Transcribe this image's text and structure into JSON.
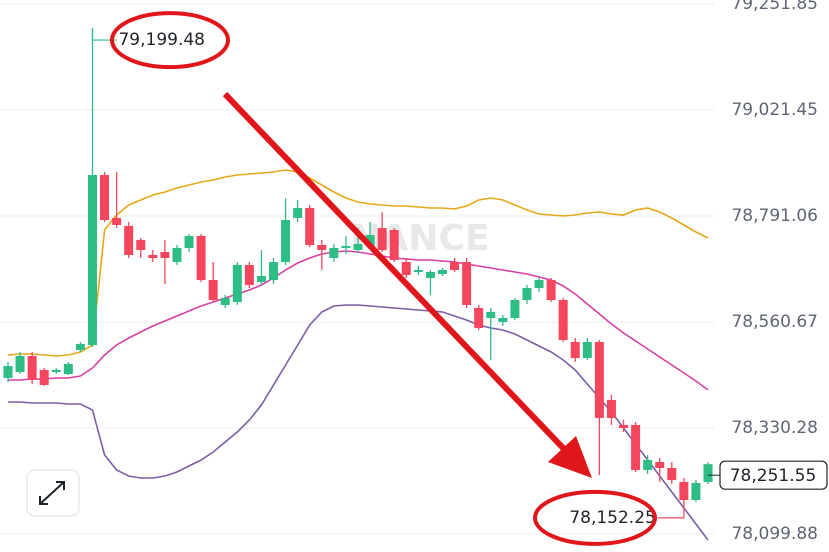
{
  "chart_data": {
    "type": "candlestick",
    "ylim": [
      78060.7,
      79260.5
    ],
    "yticks": [
      {
        "value": 79251.85,
        "label": "79,251.85"
      },
      {
        "value": 79021.45,
        "label": "79,021.45"
      },
      {
        "value": 78791.06,
        "label": "78,791.06"
      },
      {
        "value": 78560.67,
        "label": "78,560.67"
      },
      {
        "value": 78330.28,
        "label": "78,330.28"
      },
      {
        "value": 78099.88,
        "label": "78,099.88"
      }
    ],
    "grid": true,
    "up_color": "#2ebd85",
    "down_color": "#f6465d",
    "open": [
      78438.9,
      78452.0,
      78486.7,
      78456.3,
      78452.0,
      78447.6,
      78499.8,
      78510.6,
      78880.1,
      78786.7,
      78769.3,
      78738.9,
      78706.3,
      78712.8,
      78691.0,
      78721.5,
      78747.6,
      78651.9,
      78597.6,
      78604.1,
      78684.5,
      78647.6,
      78651.9,
      78691.0,
      78786.7,
      78808.4,
      78728.0,
      78699.7,
      78721.5,
      78717.1,
      78725.8,
      78764.9,
      78760.6,
      78691.0,
      78669.3,
      78656.3,
      78665.0,
      78691.0,
      78691.0,
      78591.1,
      78569.3,
      78560.6,
      78569.3,
      78608.4,
      78634.5,
      78651.9,
      78608.4,
      78517.2,
      78482.4,
      78517.2,
      78391.1,
      78336.8,
      78336.8,
      78239.0,
      78256.3,
      78243.3,
      78212.9,
      78173.7,
      78212.9
    ],
    "high": [
      78473.7,
      78495.4,
      78495.4,
      78460.7,
      78460.7,
      78473.7,
      78517.2,
      79199.48,
      78886.7,
      78886.7,
      78778.0,
      78743.2,
      78717.1,
      78738.9,
      78728.0,
      78751.9,
      78751.9,
      78691.0,
      78619.3,
      78691.0,
      78691.0,
      78717.1,
      78699.7,
      78830.1,
      78825.8,
      78814.9,
      78738.9,
      78730.2,
      78747.6,
      78764.9,
      78778.0,
      78799.7,
      78764.9,
      78699.7,
      78682.3,
      78673.7,
      78678.0,
      78699.7,
      78699.7,
      78597.6,
      78591.1,
      78575.8,
      78612.8,
      78641.1,
      78656.3,
      78656.3,
      78612.8,
      78525.9,
      78525.9,
      78521.5,
      78402.0,
      78347.6,
      78343.3,
      78271.6,
      78265.0,
      78256.3,
      78221.6,
      78217.2,
      78256.3
    ],
    "low": [
      78430.2,
      78447.6,
      78425.9,
      78421.5,
      78447.6,
      78445.4,
      78495.4,
      78506.3,
      78778.0,
      78764.9,
      78699.7,
      78699.7,
      78691.0,
      78643.2,
      78684.5,
      78712.8,
      78647.6,
      78604.1,
      78591.1,
      78597.6,
      78634.5,
      78641.1,
      78643.2,
      78684.5,
      78778.0,
      78723.6,
      78673.7,
      78691.0,
      78708.4,
      78710.6,
      78717.1,
      78712.8,
      78691.0,
      78656.3,
      78662.8,
      78619.3,
      78660.6,
      78669.3,
      78591.1,
      78543.2,
      78478.0,
      78551.9,
      78565.0,
      78599.8,
      78625.8,
      78604.1,
      78517.2,
      78473.7,
      78478.0,
      78228.1,
      78336.8,
      78321.5,
      78234.6,
      78230.3,
      78212.9,
      78208.5,
      78152.25,
      78169.4,
      78208.5
    ],
    "close": [
      78465.0,
      78486.7,
      78434.6,
      78423.7,
      78456.3,
      78469.3,
      78512.8,
      78880.1,
      78782.3,
      78771.5,
      78706.3,
      78717.1,
      78699.7,
      78699.7,
      78721.5,
      78747.6,
      78651.9,
      78608.4,
      78612.8,
      78684.5,
      78641.1,
      78660.6,
      78691.0,
      78782.3,
      78808.4,
      78728.0,
      78717.1,
      78721.5,
      78725.8,
      78730.2,
      78749.7,
      78717.1,
      78695.4,
      78662.8,
      78673.7,
      78669.3,
      78673.7,
      78673.7,
      78597.6,
      78547.6,
      78582.4,
      78569.3,
      78608.4,
      78634.5,
      78651.9,
      78608.4,
      78521.5,
      78482.4,
      78517.2,
      78352.0,
      78352.0,
      78330.2,
      78239.0,
      78260.7,
      78243.3,
      78217.2,
      78173.7,
      78210.7,
      78251.55
    ],
    "bands": [
      {
        "color": "#e6a817",
        "values": [
          78488.9,
          78491.1,
          78491.1,
          78488.9,
          78486.7,
          78488.9,
          78495.4,
          78510.6,
          78760.6,
          78793.2,
          78814.9,
          78825.8,
          78836.7,
          78843.2,
          78851.9,
          78858.4,
          78864.9,
          78869.3,
          78875.8,
          78880.1,
          78882.3,
          78884.5,
          78886.7,
          78891.0,
          78886.7,
          78873.6,
          78858.4,
          78843.2,
          78830.1,
          78821.5,
          78817.1,
          78814.9,
          78812.8,
          78812.8,
          78810.6,
          78808.4,
          78808.4,
          78806.2,
          78812.8,
          78825.8,
          78830.1,
          78825.8,
          78814.9,
          78804.1,
          78795.4,
          78793.2,
          78791.0,
          78793.2,
          78797.5,
          78799.7,
          78795.4,
          78793.2,
          78804.1,
          78808.4,
          78799.7,
          78786.7,
          78771.5,
          78756.2,
          78743.2
        ]
      },
      {
        "color": "#d63fa5",
        "values": [
          78434.6,
          78434.6,
          78436.7,
          78436.7,
          78438.9,
          78438.9,
          78443.3,
          78460.7,
          78488.9,
          78510.6,
          78525.9,
          78538.9,
          78551.9,
          78562.8,
          78573.7,
          78584.5,
          78595.4,
          78604.1,
          78612.8,
          78621.5,
          78630.2,
          78641.1,
          78656.3,
          78673.7,
          78688.9,
          78699.7,
          78708.4,
          78712.8,
          78715.0,
          78712.8,
          78708.4,
          78704.1,
          78699.7,
          78697.6,
          78695.4,
          78695.4,
          78693.2,
          78691.0,
          78686.7,
          78682.3,
          78678.0,
          78673.7,
          78669.3,
          78665.0,
          78658.4,
          78651.9,
          78638.9,
          78621.5,
          78599.8,
          78578.0,
          78556.3,
          78536.7,
          78519.3,
          78501.9,
          78484.6,
          78467.2,
          78449.8,
          78432.4,
          78412.8
        ]
      },
      {
        "color": "#7b5ea7",
        "values": [
          78386.8,
          78386.8,
          78384.6,
          78384.6,
          78384.6,
          78382.4,
          78382.4,
          78369.4,
          78271.6,
          78239.0,
          78225.9,
          78221.6,
          78221.6,
          78225.9,
          78234.6,
          78247.6,
          78260.7,
          78278.1,
          78299.8,
          78321.5,
          78347.6,
          78380.2,
          78423.7,
          78467.2,
          78510.6,
          78554.1,
          78582.4,
          78595.4,
          78597.6,
          78597.6,
          78595.4,
          78593.2,
          78591.1,
          78588.9,
          78586.7,
          78584.5,
          78582.4,
          78573.7,
          78565.0,
          78554.1,
          78547.6,
          78543.2,
          78534.6,
          78521.5,
          78508.5,
          78495.4,
          78478.0,
          78456.3,
          78425.9,
          78395.4,
          78365.0,
          78330.2,
          78295.5,
          78260.7,
          78225.9,
          78191.1,
          78156.4,
          78121.6,
          78086.8
        ]
      }
    ],
    "high_label": {
      "value": 79199.48,
      "label": "79,199.48"
    },
    "low_label": {
      "value": 78152.25,
      "label": "78,152.25"
    },
    "last_price": {
      "value": 78251.55,
      "label": "78,251.55"
    },
    "watermark": "NANCE"
  }
}
